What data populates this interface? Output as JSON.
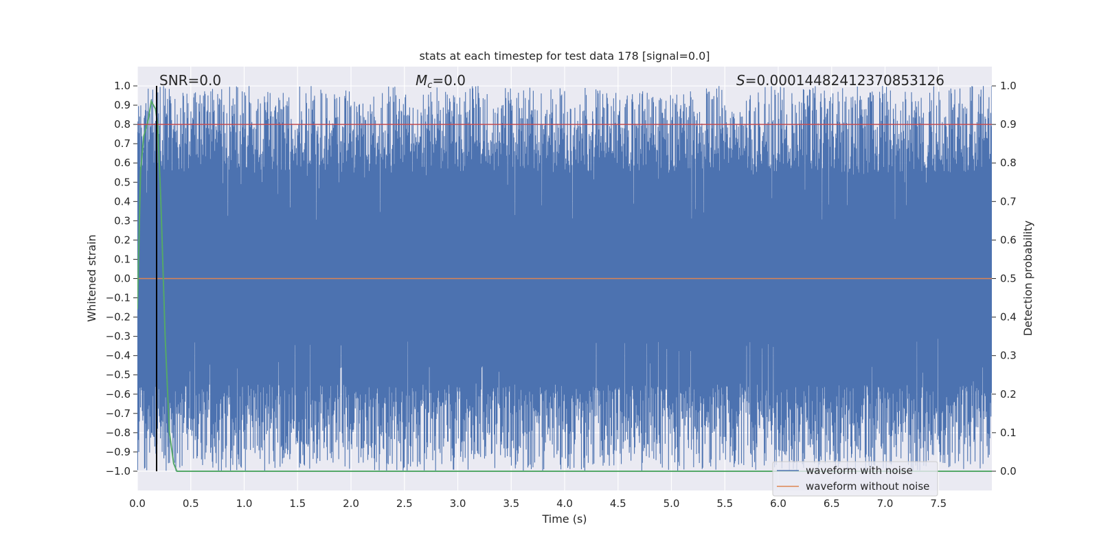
{
  "chart_data": {
    "type": "line",
    "title": "stats at each timestep for test data 178 [signal=0.0]",
    "xlabel": "Time (s)",
    "ylabel": "Whitened strain",
    "y2label": "Detection probability",
    "xlim": [
      0.0,
      8.0
    ],
    "ylim": [
      -1.1,
      1.1
    ],
    "y2lim": [
      -0.05,
      1.05
    ],
    "xticks": [
      "0.0",
      "0.5",
      "1.0",
      "1.5",
      "2.0",
      "2.5",
      "3.0",
      "3.5",
      "4.0",
      "4.5",
      "5.0",
      "5.5",
      "6.0",
      "6.5",
      "7.0",
      "7.5"
    ],
    "yticks": [
      "1.0",
      "0.9",
      "0.8",
      "0.7",
      "0.6",
      "0.5",
      "0.4",
      "0.3",
      "0.2",
      "0.1",
      "0.0",
      "−0.1",
      "−0.2",
      "−0.3",
      "−0.4",
      "−0.5",
      "−0.6",
      "−0.7",
      "−0.8",
      "−0.9",
      "−1.0"
    ],
    "y2ticks": [
      "1.0",
      "0.9",
      "0.8",
      "0.7",
      "0.6",
      "0.5",
      "0.4",
      "0.3",
      "0.2",
      "0.1",
      "0.0"
    ],
    "grid": true,
    "legend_position": "lower-right",
    "annotations": {
      "snr": "SNR=0.0",
      "mc_symbol": "M",
      "mc_sub": "c",
      "mc_value": "=0.0",
      "s_symbol": "S",
      "s_value": "=0.00014482412370853126"
    },
    "series": [
      {
        "name": "waveform with noise",
        "color": "#4c72b0",
        "noise_range": [
          -1.0,
          1.0
        ],
        "x_range": [
          0.0,
          8.0
        ]
      },
      {
        "name": "waveform without noise",
        "color": "#dd8452",
        "x": [
          0.0,
          8.0
        ],
        "y": [
          0.0,
          0.0
        ]
      },
      {
        "color": "#55a868",
        "axis": "right",
        "x": [
          0.0,
          0.03,
          0.06,
          0.1,
          0.13,
          0.17,
          0.19,
          0.22,
          0.26,
          0.3,
          0.34,
          0.37,
          0.4,
          1.0,
          2.0,
          4.0,
          6.0,
          8.0
        ],
        "y": [
          0.42,
          0.78,
          0.87,
          0.91,
          0.96,
          0.94,
          0.9,
          0.7,
          0.35,
          0.1,
          0.02,
          0.0,
          0.0,
          0.0,
          0.0,
          0.0,
          0.0,
          0.0
        ]
      },
      {
        "color": "#c44e52",
        "axis": "right",
        "x": [
          0.0,
          8.0
        ],
        "y": [
          0.9,
          0.9
        ]
      }
    ],
    "vline": {
      "x": 0.18,
      "color": "#000000"
    }
  }
}
